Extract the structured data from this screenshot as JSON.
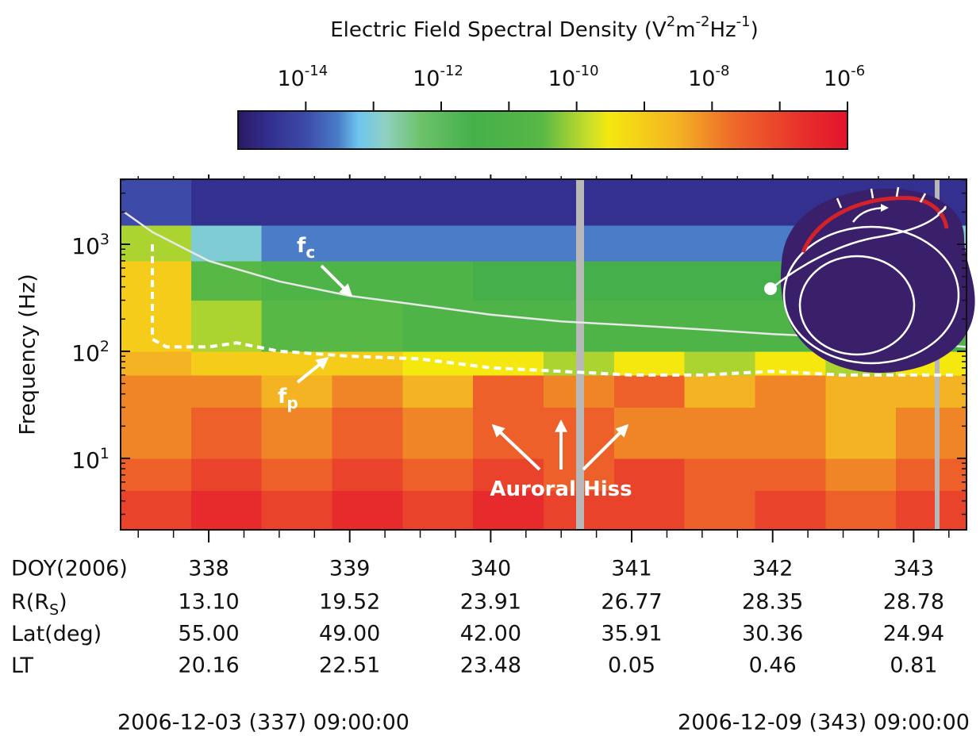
{
  "chart_data": {
    "type": "spectrogram",
    "colorbar_title": [
      "Electric Field Spectral Density (V",
      "2",
      "m",
      "-2",
      "Hz",
      "-1",
      ")"
    ],
    "clim": [
      1e-15,
      1e-06
    ],
    "cticks": [
      {
        "value": 1e-14,
        "label": "10",
        "exponent": "-14"
      },
      {
        "value": 1e-12,
        "label": "10",
        "exponent": "-12"
      },
      {
        "value": 1e-10,
        "label": "10",
        "exponent": "-10"
      },
      {
        "value": 1e-08,
        "label": "10",
        "exponent": "-8"
      },
      {
        "value": 1e-06,
        "label": "10",
        "exponent": "-6"
      }
    ],
    "cminorticks": [
      1e-13,
      1e-11,
      1e-09,
      1e-07
    ],
    "colormap": [
      {
        "value": 1e-15,
        "color": "#2a1a66"
      },
      {
        "value": 3e-15,
        "color": "#33308f"
      },
      {
        "value": 1e-14,
        "color": "#3d4aa8"
      },
      {
        "value": 3e-14,
        "color": "#4a7cc8"
      },
      {
        "value": 6e-14,
        "color": "#6ec6ee"
      },
      {
        "value": 1.5e-13,
        "color": "#8fd0c0"
      },
      {
        "value": 5e-13,
        "color": "#6cc26a"
      },
      {
        "value": 3e-12,
        "color": "#45b04a"
      },
      {
        "value": 3e-11,
        "color": "#57b845"
      },
      {
        "value": 1.5e-10,
        "color": "#c8dd2a"
      },
      {
        "value": 3e-10,
        "color": "#f4e80f"
      },
      {
        "value": 3e-09,
        "color": "#f4b323"
      },
      {
        "value": 2e-08,
        "color": "#ee6a2a"
      },
      {
        "value": 2e-07,
        "color": "#e8322b"
      },
      {
        "value": 1e-06,
        "color": "#e3132c"
      }
    ],
    "ylabel": "Frequency (Hz)",
    "ylog": true,
    "ylim": [
      2.15,
      4050
    ],
    "yticks": [
      {
        "value": 10,
        "label": "10",
        "exponent": "1"
      },
      {
        "value": 100,
        "label": "10",
        "exponent": "2"
      },
      {
        "value": 1000,
        "label": "10",
        "exponent": "3"
      }
    ],
    "yminorticks": [
      3,
      4,
      5,
      6,
      7,
      8,
      9,
      20,
      30,
      40,
      50,
      60,
      70,
      80,
      90,
      200,
      300,
      400,
      500,
      600,
      700,
      800,
      900,
      2000,
      3000,
      4000
    ],
    "xlabel": "DOY(2006)",
    "xlim": [
      337.375,
      343.375
    ],
    "xticks": [
      338,
      339,
      340,
      341,
      342,
      343
    ],
    "xminorticks": [
      337.5,
      337.75,
      338.25,
      338.5,
      338.75,
      339.25,
      339.5,
      339.75,
      340.25,
      340.5,
      340.75,
      341.25,
      341.5,
      341.75,
      342.25,
      342.5,
      342.75,
      343.25
    ],
    "xbins": [
      337.375,
      337.875,
      338.375,
      338.875,
      339.375,
      339.875,
      340.375,
      340.875,
      341.375,
      341.875,
      342.375,
      342.875,
      343.375
    ],
    "ybins": [
      2.15,
      5,
      10,
      30,
      60,
      100,
      300,
      700,
      1500,
      4050
    ],
    "z": [
      [
        1e-07,
        3e-07,
        1e-07,
        3e-07,
        1e-07,
        3e-07,
        1e-07,
        1e-07,
        3e-08,
        1e-07,
        3e-08,
        1e-07
      ],
      [
        3e-08,
        1e-07,
        3e-08,
        1e-07,
        3e-08,
        1e-07,
        3e-08,
        1e-07,
        3e-08,
        3e-08,
        1e-08,
        3e-08
      ],
      [
        1e-08,
        3e-08,
        1e-08,
        3e-08,
        1e-08,
        3e-08,
        3e-08,
        1e-08,
        1e-08,
        1e-08,
        3e-09,
        1e-08
      ],
      [
        1e-08,
        1e-08,
        3e-09,
        1e-08,
        3e-09,
        3e-08,
        1e-08,
        3e-08,
        3e-09,
        1e-08,
        3e-09,
        3e-09
      ],
      [
        3e-09,
        1e-09,
        1e-09,
        1e-09,
        3e-10,
        3e-10,
        1e-10,
        3e-10,
        1e-10,
        3e-10,
        1e-10,
        3e-10
      ],
      [
        1e-09,
        1e-10,
        3e-11,
        3e-11,
        1e-11,
        1e-11,
        1e-11,
        1e-11,
        1e-11,
        1e-11,
        1e-11,
        1e-11
      ],
      [
        1e-09,
        3e-11,
        1e-11,
        1e-11,
        1e-11,
        3e-12,
        3e-12,
        3e-12,
        3e-12,
        3e-12,
        3e-12,
        3e-12
      ],
      [
        1e-10,
        1e-13,
        3e-14,
        3e-14,
        3e-14,
        3e-14,
        3e-14,
        3e-14,
        3e-14,
        3e-14,
        1e-13,
        1e-13
      ],
      [
        1e-14,
        3e-15,
        3e-15,
        3e-15,
        3e-15,
        3e-15,
        3e-15,
        3e-15,
        3e-15,
        3e-15,
        3e-15,
        3e-15
      ]
    ],
    "lines": [
      {
        "color": "#e8e8e8",
        "dashed": false,
        "x": [
          337.4,
          337.6,
          338,
          338.5,
          339,
          339.5,
          340,
          340.5,
          341,
          341.5,
          342,
          342.5,
          343,
          343.37
        ],
        "y": [
          2000,
          1300,
          700,
          450,
          330,
          270,
          220,
          190,
          175,
          160,
          145,
          135,
          120,
          110
        ]
      },
      {
        "color": "#ffffff",
        "dashed": true,
        "x": [
          337.6,
          337.6,
          337.7,
          338,
          338.2,
          338.5,
          339,
          339.5,
          340,
          340.5,
          341,
          341.5,
          342,
          342.5,
          343,
          343.3
        ],
        "y": [
          1000,
          130,
          110,
          110,
          120,
          100,
          90,
          85,
          70,
          65,
          60,
          60,
          65,
          60,
          60,
          60
        ]
      }
    ],
    "annotations": [
      {
        "text": "f",
        "sub": "c"
      },
      {
        "text": "f",
        "sub": "p"
      },
      {
        "text": "Auroral Hiss"
      }
    ],
    "orbit_rows": [
      {
        "label": "R(R",
        "label_sub": "S",
        "label_end": ")",
        "values": [
          "13.10",
          "19.52",
          "23.91",
          "26.77",
          "28.35",
          "28.78"
        ]
      },
      {
        "label": "Lat(deg)",
        "values": [
          "55.00",
          "49.00",
          "42.00",
          "35.91",
          "30.36",
          "24.94"
        ]
      },
      {
        "label": "LT",
        "values": [
          "20.16",
          "22.51",
          "23.48",
          "0.05",
          "0.46",
          "0.81"
        ]
      }
    ],
    "start_label": "2006-12-03 (337) 09:00:00",
    "end_label": "2006-12-09 (343) 09:00:00"
  }
}
